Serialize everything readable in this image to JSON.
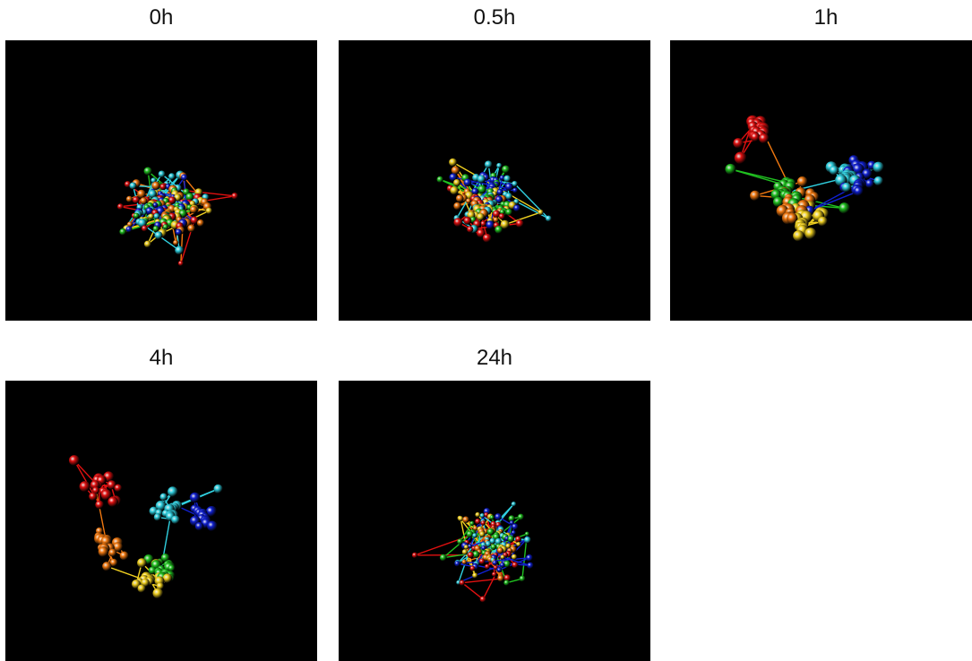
{
  "panels": [
    {
      "label": "0h",
      "state": "compact mixed"
    },
    {
      "label": "0.5h",
      "state": "compact mixed, partially segregated"
    },
    {
      "label": "1h",
      "state": "segregated"
    },
    {
      "label": "4h",
      "state": "segregated"
    },
    {
      "label": "24h",
      "state": "compact mixed"
    }
  ],
  "colors": {
    "background": "#000000",
    "red": "#e01010",
    "orange": "#f07810",
    "yellow": "#f0d020",
    "green": "#20c020",
    "cyan": "#30d0e0",
    "blue": "#1020d0"
  }
}
